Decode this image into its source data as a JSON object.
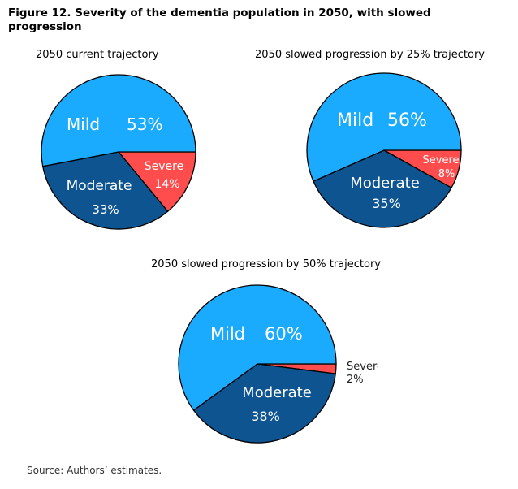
{
  "figure": {
    "title_line1": "Figure 12. Severity of the dementia population in 2050, with slowed",
    "title_line2": "progression",
    "source": "Source: Authors’ estimates."
  },
  "colors": {
    "mild": "#1aabff",
    "moderate": "#0d5490",
    "severe": "#ff4d4d"
  },
  "chart_data": [
    {
      "type": "pie",
      "title": "2050 current trajectory",
      "categories": [
        "Mild",
        "Severe",
        "Moderate"
      ],
      "values": [
        53,
        14,
        33
      ],
      "labels": [
        "53%",
        "14%",
        "33%"
      ]
    },
    {
      "type": "pie",
      "title": "2050 slowed progression by 25% trajectory",
      "categories": [
        "Mild",
        "Severe",
        "Moderate"
      ],
      "values": [
        56,
        8,
        35
      ],
      "labels": [
        "56%",
        "8%",
        "35%"
      ]
    },
    {
      "type": "pie",
      "title": "2050 slowed progression by 50% trajectory",
      "categories": [
        "Mild",
        "Severe",
        "Moderate"
      ],
      "values": [
        60,
        2,
        38
      ],
      "labels": [
        "60%",
        "2%",
        "38%"
      ]
    }
  ]
}
